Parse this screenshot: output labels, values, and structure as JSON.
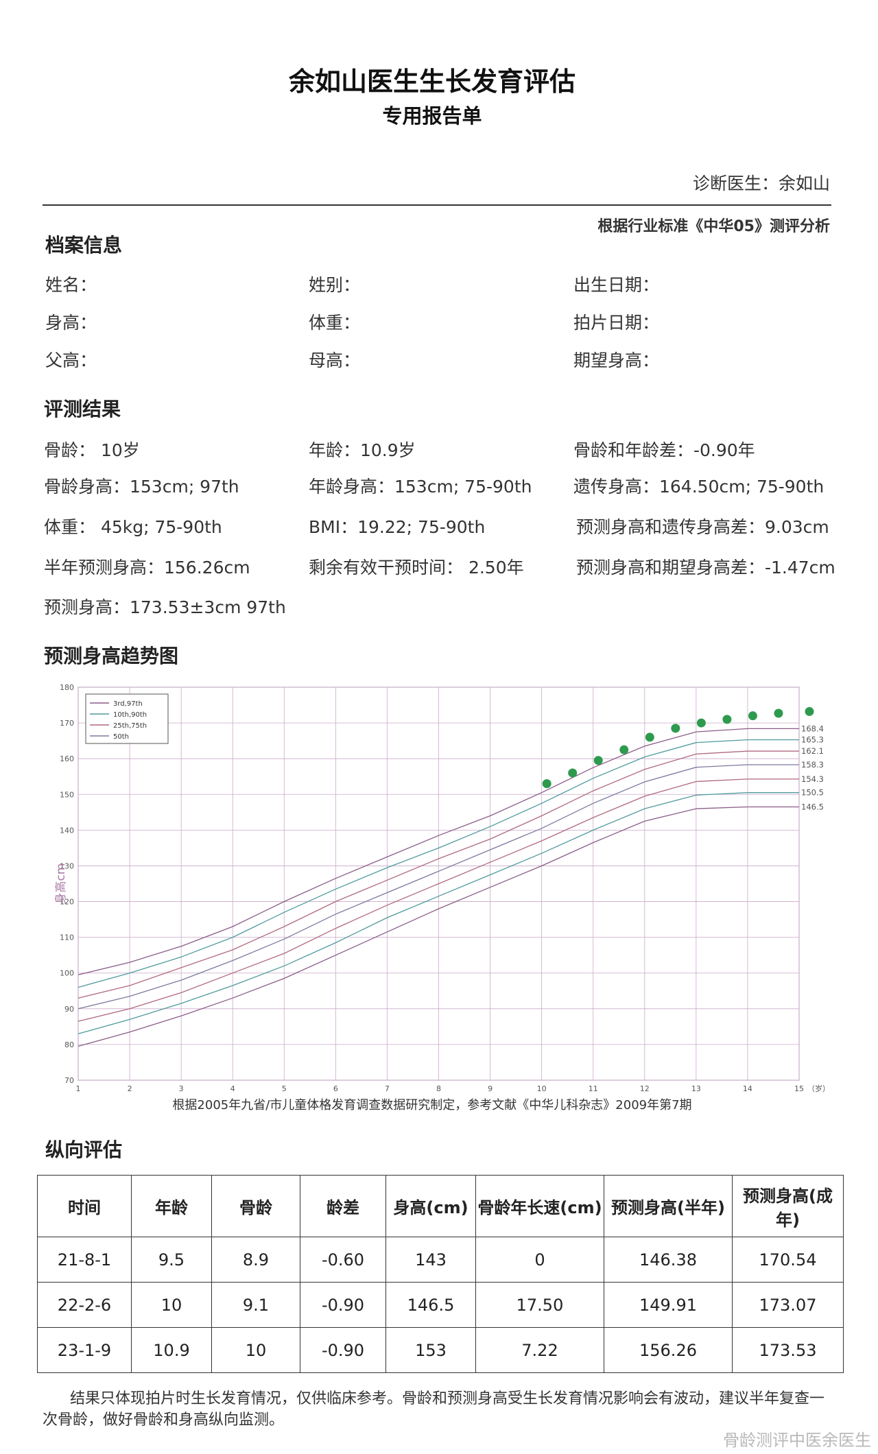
{
  "header": {
    "title": "余如山医生生长发育评估",
    "subtitle": "专用报告单",
    "doctor": "诊断医生：余如山",
    "standard": "根据行业标准《中华05》测评分析"
  },
  "profile": {
    "heading": "档案信息",
    "fields": [
      {
        "label": "姓名："
      },
      {
        "label": "姓别："
      },
      {
        "label": "出生日期："
      },
      {
        "label": "身高："
      },
      {
        "label": "体重："
      },
      {
        "label": "拍片日期："
      },
      {
        "label": "父高："
      },
      {
        "label": "母高："
      },
      {
        "label": "期望身高："
      }
    ]
  },
  "results": {
    "heading": "评测结果",
    "items": [
      "骨龄： 10岁",
      "年龄：10.9岁",
      "骨龄和年龄差：-0.90年",
      "骨龄身高：153cm;    97th",
      "年龄身高：153cm;    75-90th",
      "遗传身高：164.50cm;   75-90th",
      "体重： 45kg;    75-90th",
      "BMI：19.22; 75-90th",
      "预测身高和遗传身高差：9.03cm",
      "半年预测身高：156.26cm",
      "剩余有效干预时间： 2.50年",
      "预测身高和期望身高差：-1.47cm",
      "预测身高：173.53±3cm    97th"
    ]
  },
  "trend": {
    "heading": "预测身高趋势图",
    "caption": "根据2005年九省/市儿童体格发育调查数据研究制定，参考文献《中华儿科杂志》2009年第7期"
  },
  "chart_data": {
    "type": "line",
    "ylabel": "身高cm",
    "x_unit": "（岁）",
    "xlim": [
      1,
      15
    ],
    "ylim": [
      70,
      180
    ],
    "x_ticks": [
      1,
      2,
      3,
      4,
      5,
      6,
      7,
      8,
      9,
      10,
      11,
      12,
      13,
      14,
      15
    ],
    "y_ticks": [
      70,
      80,
      90,
      100,
      110,
      120,
      130,
      140,
      150,
      160,
      170,
      180
    ],
    "legend": [
      "3rd,97th",
      "10th,90th",
      "25th,75th",
      "50th"
    ],
    "legend_position": "top-left",
    "end_labels": [
      "168.4",
      "165.3",
      "162.1",
      "158.3",
      "154.3",
      "150.5",
      "146.5"
    ],
    "series": [
      {
        "color": "#8a5c87",
        "points": [
          [
            1,
            99.5
          ],
          [
            2,
            103
          ],
          [
            3,
            107.5
          ],
          [
            4,
            113
          ],
          [
            5,
            120
          ],
          [
            6,
            126.5
          ],
          [
            7,
            132.5
          ],
          [
            8,
            138.5
          ],
          [
            9,
            144
          ],
          [
            10,
            150.5
          ],
          [
            11,
            157.5
          ],
          [
            12,
            163.5
          ],
          [
            13,
            167.5
          ],
          [
            14,
            168.4
          ],
          [
            15,
            168.4
          ]
        ]
      },
      {
        "color": "#4f9a9c",
        "points": [
          [
            1,
            96
          ],
          [
            2,
            100
          ],
          [
            3,
            104.5
          ],
          [
            4,
            110
          ],
          [
            5,
            117
          ],
          [
            6,
            123.5
          ],
          [
            7,
            129.5
          ],
          [
            8,
            135
          ],
          [
            9,
            141
          ],
          [
            10,
            147.5
          ],
          [
            11,
            154.5
          ],
          [
            12,
            160.5
          ],
          [
            13,
            164.5
          ],
          [
            14,
            165.3
          ],
          [
            15,
            165.3
          ]
        ]
      },
      {
        "color": "#b0697d",
        "points": [
          [
            1,
            93
          ],
          [
            2,
            96.5
          ],
          [
            3,
            101.5
          ],
          [
            4,
            106.5
          ],
          [
            5,
            113
          ],
          [
            6,
            120
          ],
          [
            7,
            126
          ],
          [
            8,
            132
          ],
          [
            9,
            137.5
          ],
          [
            10,
            144
          ],
          [
            11,
            151
          ],
          [
            12,
            157
          ],
          [
            13,
            161.3
          ],
          [
            14,
            162.1
          ],
          [
            15,
            162.1
          ]
        ]
      },
      {
        "color": "#7a7aa0",
        "points": [
          [
            1,
            90
          ],
          [
            2,
            93.5
          ],
          [
            3,
            98
          ],
          [
            4,
            103.5
          ],
          [
            5,
            109.5
          ],
          [
            6,
            116.5
          ],
          [
            7,
            122.5
          ],
          [
            8,
            128.5
          ],
          [
            9,
            134.5
          ],
          [
            10,
            140.5
          ],
          [
            11,
            147.5
          ],
          [
            12,
            153.5
          ],
          [
            13,
            157.6
          ],
          [
            14,
            158.3
          ],
          [
            15,
            158.3
          ]
        ]
      },
      {
        "color": "#b0697d",
        "points": [
          [
            1,
            86.5
          ],
          [
            2,
            90
          ],
          [
            3,
            94.5
          ],
          [
            4,
            100
          ],
          [
            5,
            105.5
          ],
          [
            6,
            112.5
          ],
          [
            7,
            119
          ],
          [
            8,
            125
          ],
          [
            9,
            131
          ],
          [
            10,
            137
          ],
          [
            11,
            143.5
          ],
          [
            12,
            149.5
          ],
          [
            13,
            153.6
          ],
          [
            14,
            154.3
          ],
          [
            15,
            154.3
          ]
        ]
      },
      {
        "color": "#4f9a9c",
        "points": [
          [
            1,
            83
          ],
          [
            2,
            87
          ],
          [
            3,
            91.5
          ],
          [
            4,
            96.5
          ],
          [
            5,
            102
          ],
          [
            6,
            108.5
          ],
          [
            7,
            115.5
          ],
          [
            8,
            121.5
          ],
          [
            9,
            127.5
          ],
          [
            10,
            133.5
          ],
          [
            11,
            140
          ],
          [
            12,
            146
          ],
          [
            13,
            149.8
          ],
          [
            14,
            150.5
          ],
          [
            15,
            150.5
          ]
        ]
      },
      {
        "color": "#8a5c87",
        "points": [
          [
            1,
            79.5
          ],
          [
            2,
            83.5
          ],
          [
            3,
            88
          ],
          [
            4,
            93
          ],
          [
            5,
            98.5
          ],
          [
            6,
            105
          ],
          [
            7,
            111.5
          ],
          [
            8,
            118
          ],
          [
            9,
            124
          ],
          [
            10,
            130
          ],
          [
            11,
            136.5
          ],
          [
            12,
            142.5
          ],
          [
            13,
            146
          ],
          [
            14,
            146.5
          ],
          [
            15,
            146.5
          ]
        ]
      }
    ],
    "predicted_points": [
      [
        10.1,
        153
      ],
      [
        10.6,
        156
      ],
      [
        11.1,
        159.5
      ],
      [
        11.6,
        162.5
      ],
      [
        12.1,
        166
      ],
      [
        12.6,
        168.5
      ],
      [
        13.1,
        170
      ],
      [
        13.6,
        171
      ],
      [
        14.1,
        172
      ],
      [
        14.6,
        172.7
      ],
      [
        15.2,
        173.2
      ]
    ]
  },
  "longitudinal": {
    "heading": "纵向评估",
    "headers": [
      "时间",
      "年龄",
      "骨龄",
      "龄差",
      "身高(cm)",
      "骨龄年长速(cm)",
      "预测身高(半年)",
      "预测身高(成年)"
    ],
    "rows": [
      [
        "21-8-1",
        "9.5",
        "8.9",
        "-0.60",
        "143",
        "0",
        "146.38",
        "170.54"
      ],
      [
        "22-2-6",
        "10",
        "9.1",
        "-0.90",
        "146.5",
        "17.50",
        "149.91",
        "173.07"
      ],
      [
        "23-1-9",
        "10.9",
        "10",
        "-0.90",
        "153",
        "7.22",
        "156.26",
        "173.53"
      ]
    ]
  },
  "note": "结果只体现拍片时生长发育情况，仅供临床参考。骨龄和预测身高受生长发育情况影响会有波动，建议半年复查一次骨龄，做好骨龄和身高纵向监测。",
  "watermark": "骨龄测评中医余医生"
}
